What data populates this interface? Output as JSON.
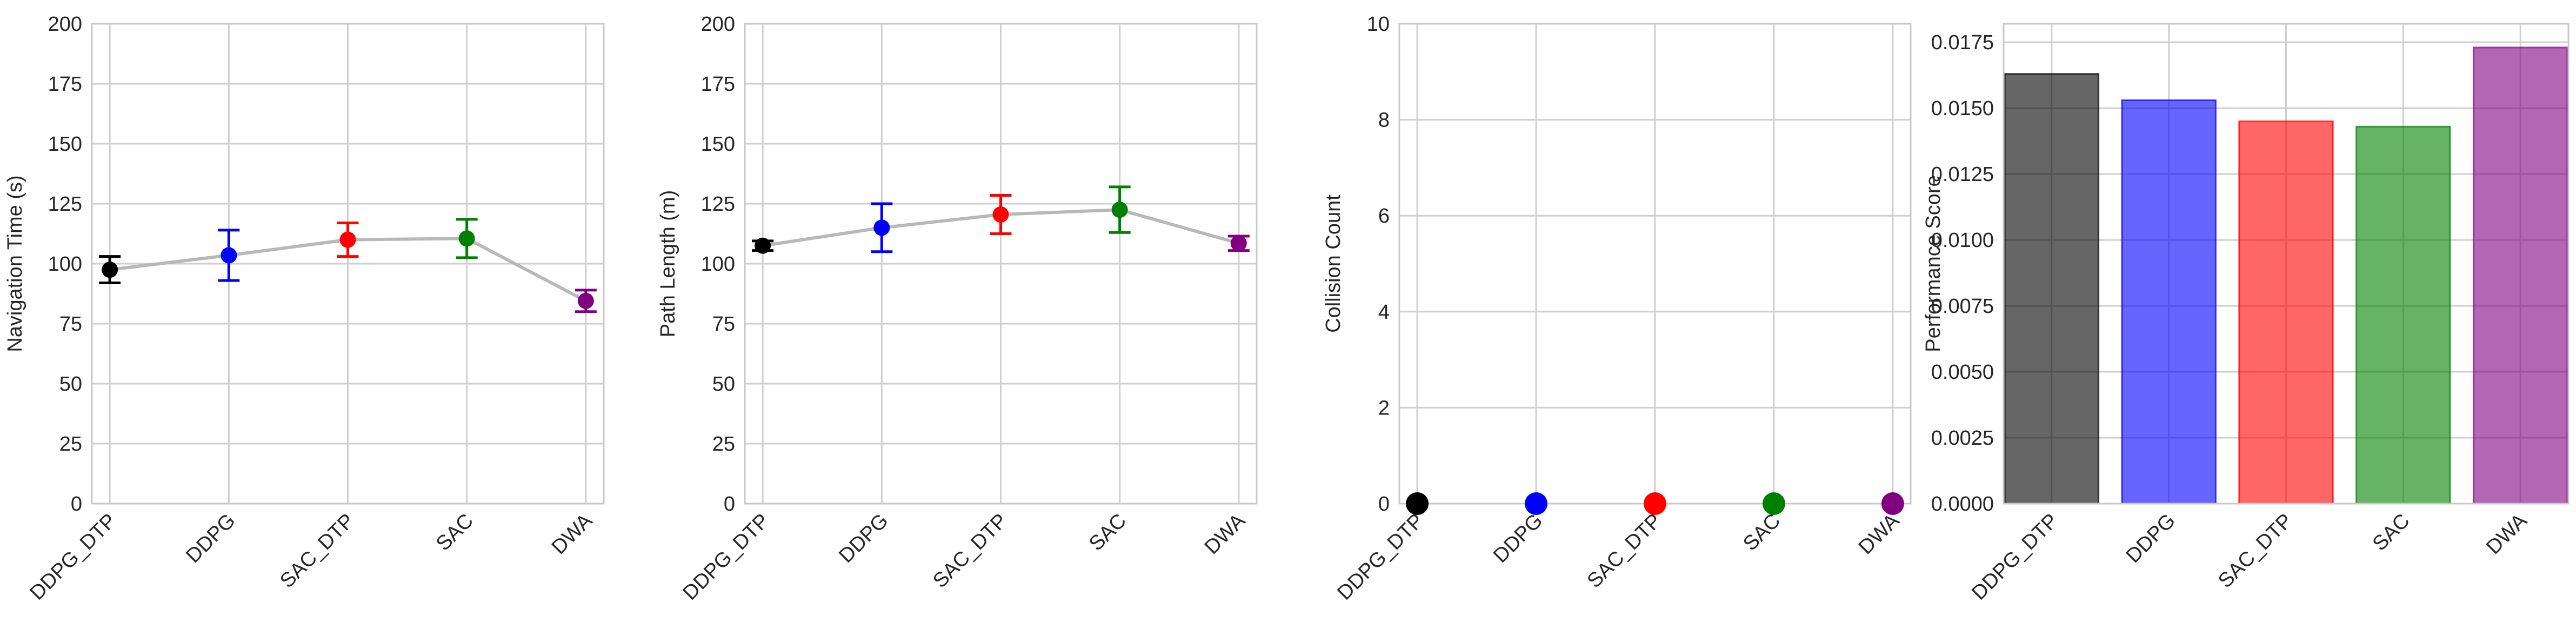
{
  "chart_data": [
    {
      "type": "line",
      "ylabel": "Navigation Time (s)",
      "categories": [
        "DDPG_DTP",
        "DDPG",
        "SAC_DTP",
        "SAC",
        "DWA"
      ],
      "ylim": [
        0,
        200
      ],
      "yticks": [
        "0",
        "25",
        "50",
        "75",
        "100",
        "125",
        "150",
        "175",
        "200"
      ],
      "values": [
        97.5,
        103.5,
        110,
        110.5,
        84.5
      ],
      "errors": [
        5.5,
        10.5,
        7,
        8,
        4.5
      ],
      "colors": [
        "#000000",
        "#0000ff",
        "#ff0000",
        "#008000",
        "#800080"
      ],
      "line_color": "#b8b8b8",
      "grid": true
    },
    {
      "type": "line",
      "ylabel": "Path Length (m)",
      "categories": [
        "DDPG_DTP",
        "DDPG",
        "SAC_DTP",
        "SAC",
        "DWA"
      ],
      "ylim": [
        0,
        200
      ],
      "yticks": [
        "0",
        "25",
        "50",
        "75",
        "100",
        "125",
        "150",
        "175",
        "200"
      ],
      "values": [
        107.5,
        115,
        120.5,
        122.5,
        108.5
      ],
      "errors": [
        2,
        10,
        8,
        9.5,
        3
      ],
      "colors": [
        "#000000",
        "#0000ff",
        "#ff0000",
        "#008000",
        "#800080"
      ],
      "line_color": "#b8b8b8",
      "grid": true
    },
    {
      "type": "scatter",
      "ylabel": "Collision Count",
      "categories": [
        "DDPG_DTP",
        "DDPG",
        "SAC_DTP",
        "SAC",
        "DWA"
      ],
      "ylim": [
        0,
        10
      ],
      "yticks": [
        "0",
        "2",
        "4",
        "6",
        "8",
        "10"
      ],
      "values": [
        0,
        0,
        0,
        0,
        0
      ],
      "colors": [
        "#000000",
        "#0000ff",
        "#ff0000",
        "#008000",
        "#800080"
      ],
      "grid": true
    },
    {
      "type": "bar",
      "ylabel": "Performance Score",
      "categories": [
        "DDPG_DTP",
        "DDPG",
        "SAC_DTP",
        "SAC",
        "DWA"
      ],
      "ylim": [
        0,
        0.0182
      ],
      "yticks": [
        "0.0000",
        "0.0025",
        "0.0050",
        "0.0075",
        "0.0100",
        "0.0125",
        "0.0150",
        "0.0175"
      ],
      "values": [
        0.0163,
        0.0153,
        0.0145,
        0.0143,
        0.0173
      ],
      "colors": [
        "#000000",
        "#0000ff",
        "#ff0000",
        "#008000",
        "#800080"
      ],
      "grid": true
    }
  ]
}
